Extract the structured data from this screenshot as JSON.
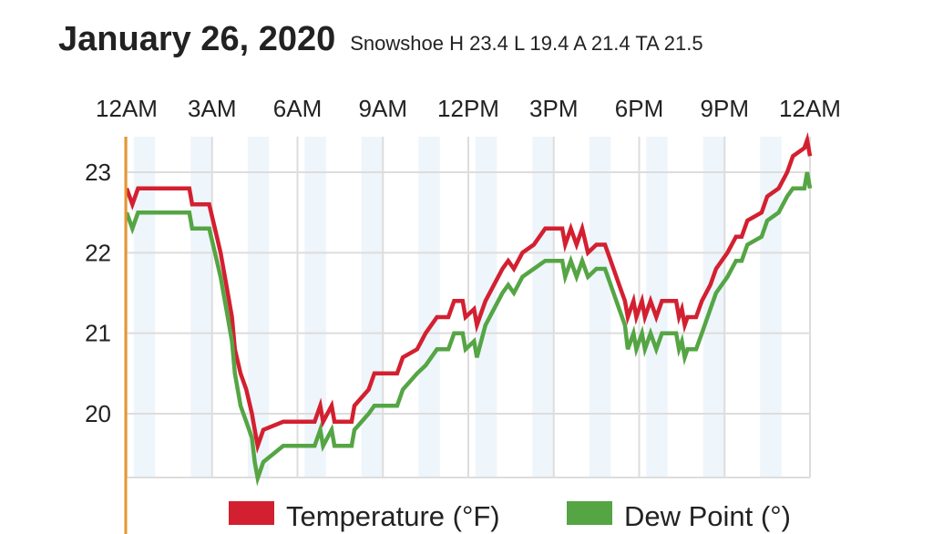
{
  "header": {
    "title": "January 26, 2020",
    "subtitle": "Snowshoe H 23.4 L 19.4 A 21.4 TA 21.5"
  },
  "colors": {
    "temperature": "#d32030",
    "dew_point": "#55a544",
    "band": "#eef5fb",
    "grid": "#dddddd",
    "cursor": "#e8962e"
  },
  "chart_data": {
    "type": "line",
    "title": "January 26, 2020",
    "x_ticks": [
      "12AM",
      "3AM",
      "6AM",
      "9AM",
      "12PM",
      "3PM",
      "6PM",
      "9PM",
      "12AM"
    ],
    "xlim": [
      0,
      24
    ],
    "y_ticks": [
      "20",
      "21",
      "22",
      "23"
    ],
    "ylim": [
      19.2,
      23.6
    ],
    "grid": true,
    "legend_position": "bottom",
    "series": [
      {
        "name": "Temperature (°F)",
        "points": [
          [
            0,
            22.8
          ],
          [
            0.2,
            22.6
          ],
          [
            0.4,
            22.8
          ],
          [
            2.2,
            22.8
          ],
          [
            2.3,
            22.6
          ],
          [
            2.9,
            22.6
          ],
          [
            3.1,
            22.3
          ],
          [
            3.3,
            22.0
          ],
          [
            3.5,
            21.6
          ],
          [
            3.7,
            21.2
          ],
          [
            3.8,
            20.8
          ],
          [
            4.0,
            20.5
          ],
          [
            4.2,
            20.3
          ],
          [
            4.4,
            20.0
          ],
          [
            4.5,
            19.8
          ],
          [
            4.6,
            19.6
          ],
          [
            4.8,
            19.8
          ],
          [
            5.5,
            19.9
          ],
          [
            6.6,
            19.9
          ],
          [
            6.8,
            20.1
          ],
          [
            6.9,
            19.9
          ],
          [
            7.2,
            20.1
          ],
          [
            7.3,
            19.9
          ],
          [
            7.9,
            19.9
          ],
          [
            8.0,
            20.1
          ],
          [
            8.5,
            20.3
          ],
          [
            8.7,
            20.5
          ],
          [
            9.5,
            20.5
          ],
          [
            9.7,
            20.7
          ],
          [
            10.2,
            20.8
          ],
          [
            10.5,
            21.0
          ],
          [
            10.9,
            21.2
          ],
          [
            11.3,
            21.2
          ],
          [
            11.5,
            21.4
          ],
          [
            11.8,
            21.4
          ],
          [
            11.9,
            21.2
          ],
          [
            12.2,
            21.3
          ],
          [
            12.3,
            21.1
          ],
          [
            12.6,
            21.4
          ],
          [
            12.9,
            21.6
          ],
          [
            13.2,
            21.8
          ],
          [
            13.4,
            21.9
          ],
          [
            13.6,
            21.8
          ],
          [
            13.9,
            22.0
          ],
          [
            14.3,
            22.1
          ],
          [
            14.7,
            22.3
          ],
          [
            15.3,
            22.3
          ],
          [
            15.4,
            22.1
          ],
          [
            15.6,
            22.3
          ],
          [
            15.8,
            22.1
          ],
          [
            16.0,
            22.3
          ],
          [
            16.2,
            22.0
          ],
          [
            16.5,
            22.1
          ],
          [
            16.8,
            22.1
          ],
          [
            17.0,
            21.9
          ],
          [
            17.3,
            21.6
          ],
          [
            17.5,
            21.4
          ],
          [
            17.6,
            21.2
          ],
          [
            17.8,
            21.4
          ],
          [
            17.9,
            21.2
          ],
          [
            18.1,
            21.4
          ],
          [
            18.2,
            21.2
          ],
          [
            18.4,
            21.4
          ],
          [
            18.6,
            21.2
          ],
          [
            18.8,
            21.4
          ],
          [
            19.3,
            21.4
          ],
          [
            19.4,
            21.2
          ],
          [
            19.5,
            21.3
          ],
          [
            19.6,
            21.1
          ],
          [
            19.7,
            21.2
          ],
          [
            20.0,
            21.2
          ],
          [
            20.2,
            21.4
          ],
          [
            20.5,
            21.6
          ],
          [
            20.7,
            21.8
          ],
          [
            21.1,
            22.0
          ],
          [
            21.4,
            22.2
          ],
          [
            21.6,
            22.2
          ],
          [
            21.8,
            22.4
          ],
          [
            22.3,
            22.5
          ],
          [
            22.5,
            22.7
          ],
          [
            22.9,
            22.8
          ],
          [
            23.2,
            23.0
          ],
          [
            23.4,
            23.2
          ],
          [
            23.8,
            23.3
          ],
          [
            23.9,
            23.4
          ],
          [
            24.0,
            23.2
          ]
        ]
      },
      {
        "name": "Dew Point (°)",
        "points": [
          [
            0,
            22.5
          ],
          [
            0.2,
            22.3
          ],
          [
            0.4,
            22.5
          ],
          [
            2.2,
            22.5
          ],
          [
            2.3,
            22.3
          ],
          [
            2.9,
            22.3
          ],
          [
            3.1,
            22.0
          ],
          [
            3.3,
            21.7
          ],
          [
            3.5,
            21.3
          ],
          [
            3.7,
            20.9
          ],
          [
            3.8,
            20.5
          ],
          [
            4.0,
            20.1
          ],
          [
            4.2,
            19.9
          ],
          [
            4.4,
            19.7
          ],
          [
            4.5,
            19.4
          ],
          [
            4.6,
            19.2
          ],
          [
            4.8,
            19.4
          ],
          [
            5.5,
            19.6
          ],
          [
            6.6,
            19.6
          ],
          [
            6.8,
            19.8
          ],
          [
            6.9,
            19.6
          ],
          [
            7.2,
            19.8
          ],
          [
            7.3,
            19.6
          ],
          [
            7.9,
            19.6
          ],
          [
            8.0,
            19.8
          ],
          [
            8.5,
            20.0
          ],
          [
            8.7,
            20.1
          ],
          [
            9.5,
            20.1
          ],
          [
            9.7,
            20.3
          ],
          [
            10.2,
            20.5
          ],
          [
            10.5,
            20.6
          ],
          [
            10.9,
            20.8
          ],
          [
            11.3,
            20.8
          ],
          [
            11.5,
            21.0
          ],
          [
            11.8,
            21.0
          ],
          [
            11.9,
            20.8
          ],
          [
            12.2,
            20.9
          ],
          [
            12.3,
            20.7
          ],
          [
            12.6,
            21.1
          ],
          [
            12.9,
            21.3
          ],
          [
            13.2,
            21.5
          ],
          [
            13.4,
            21.6
          ],
          [
            13.6,
            21.5
          ],
          [
            13.9,
            21.7
          ],
          [
            14.3,
            21.8
          ],
          [
            14.7,
            21.9
          ],
          [
            15.3,
            21.9
          ],
          [
            15.4,
            21.7
          ],
          [
            15.6,
            21.9
          ],
          [
            15.8,
            21.7
          ],
          [
            16.0,
            21.9
          ],
          [
            16.2,
            21.7
          ],
          [
            16.5,
            21.8
          ],
          [
            16.8,
            21.8
          ],
          [
            17.0,
            21.6
          ],
          [
            17.3,
            21.3
          ],
          [
            17.5,
            21.1
          ],
          [
            17.6,
            20.8
          ],
          [
            17.8,
            21.0
          ],
          [
            17.9,
            20.8
          ],
          [
            18.1,
            21.0
          ],
          [
            18.2,
            20.8
          ],
          [
            18.4,
            21.0
          ],
          [
            18.6,
            20.8
          ],
          [
            18.8,
            21.0
          ],
          [
            19.3,
            21.0
          ],
          [
            19.4,
            20.8
          ],
          [
            19.5,
            20.9
          ],
          [
            19.6,
            20.7
          ],
          [
            19.7,
            20.8
          ],
          [
            20.0,
            20.8
          ],
          [
            20.2,
            21.0
          ],
          [
            20.5,
            21.3
          ],
          [
            20.7,
            21.5
          ],
          [
            21.1,
            21.7
          ],
          [
            21.4,
            21.9
          ],
          [
            21.6,
            21.9
          ],
          [
            21.8,
            22.1
          ],
          [
            22.3,
            22.2
          ],
          [
            22.5,
            22.4
          ],
          [
            22.9,
            22.5
          ],
          [
            23.2,
            22.7
          ],
          [
            23.4,
            22.8
          ],
          [
            23.8,
            22.8
          ],
          [
            23.9,
            23.0
          ],
          [
            24.0,
            22.8
          ]
        ]
      }
    ]
  }
}
